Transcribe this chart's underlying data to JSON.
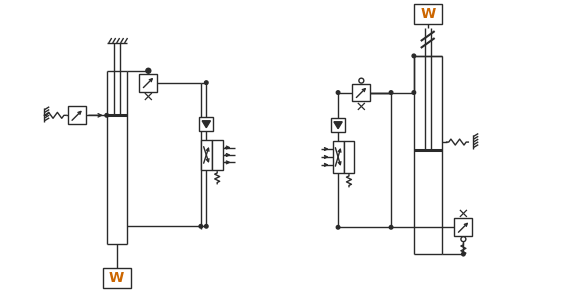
{
  "bg": "#ffffff",
  "lc": "#2a2a2a",
  "lw": 1.0,
  "fig_w": 5.83,
  "fig_h": 3.0
}
